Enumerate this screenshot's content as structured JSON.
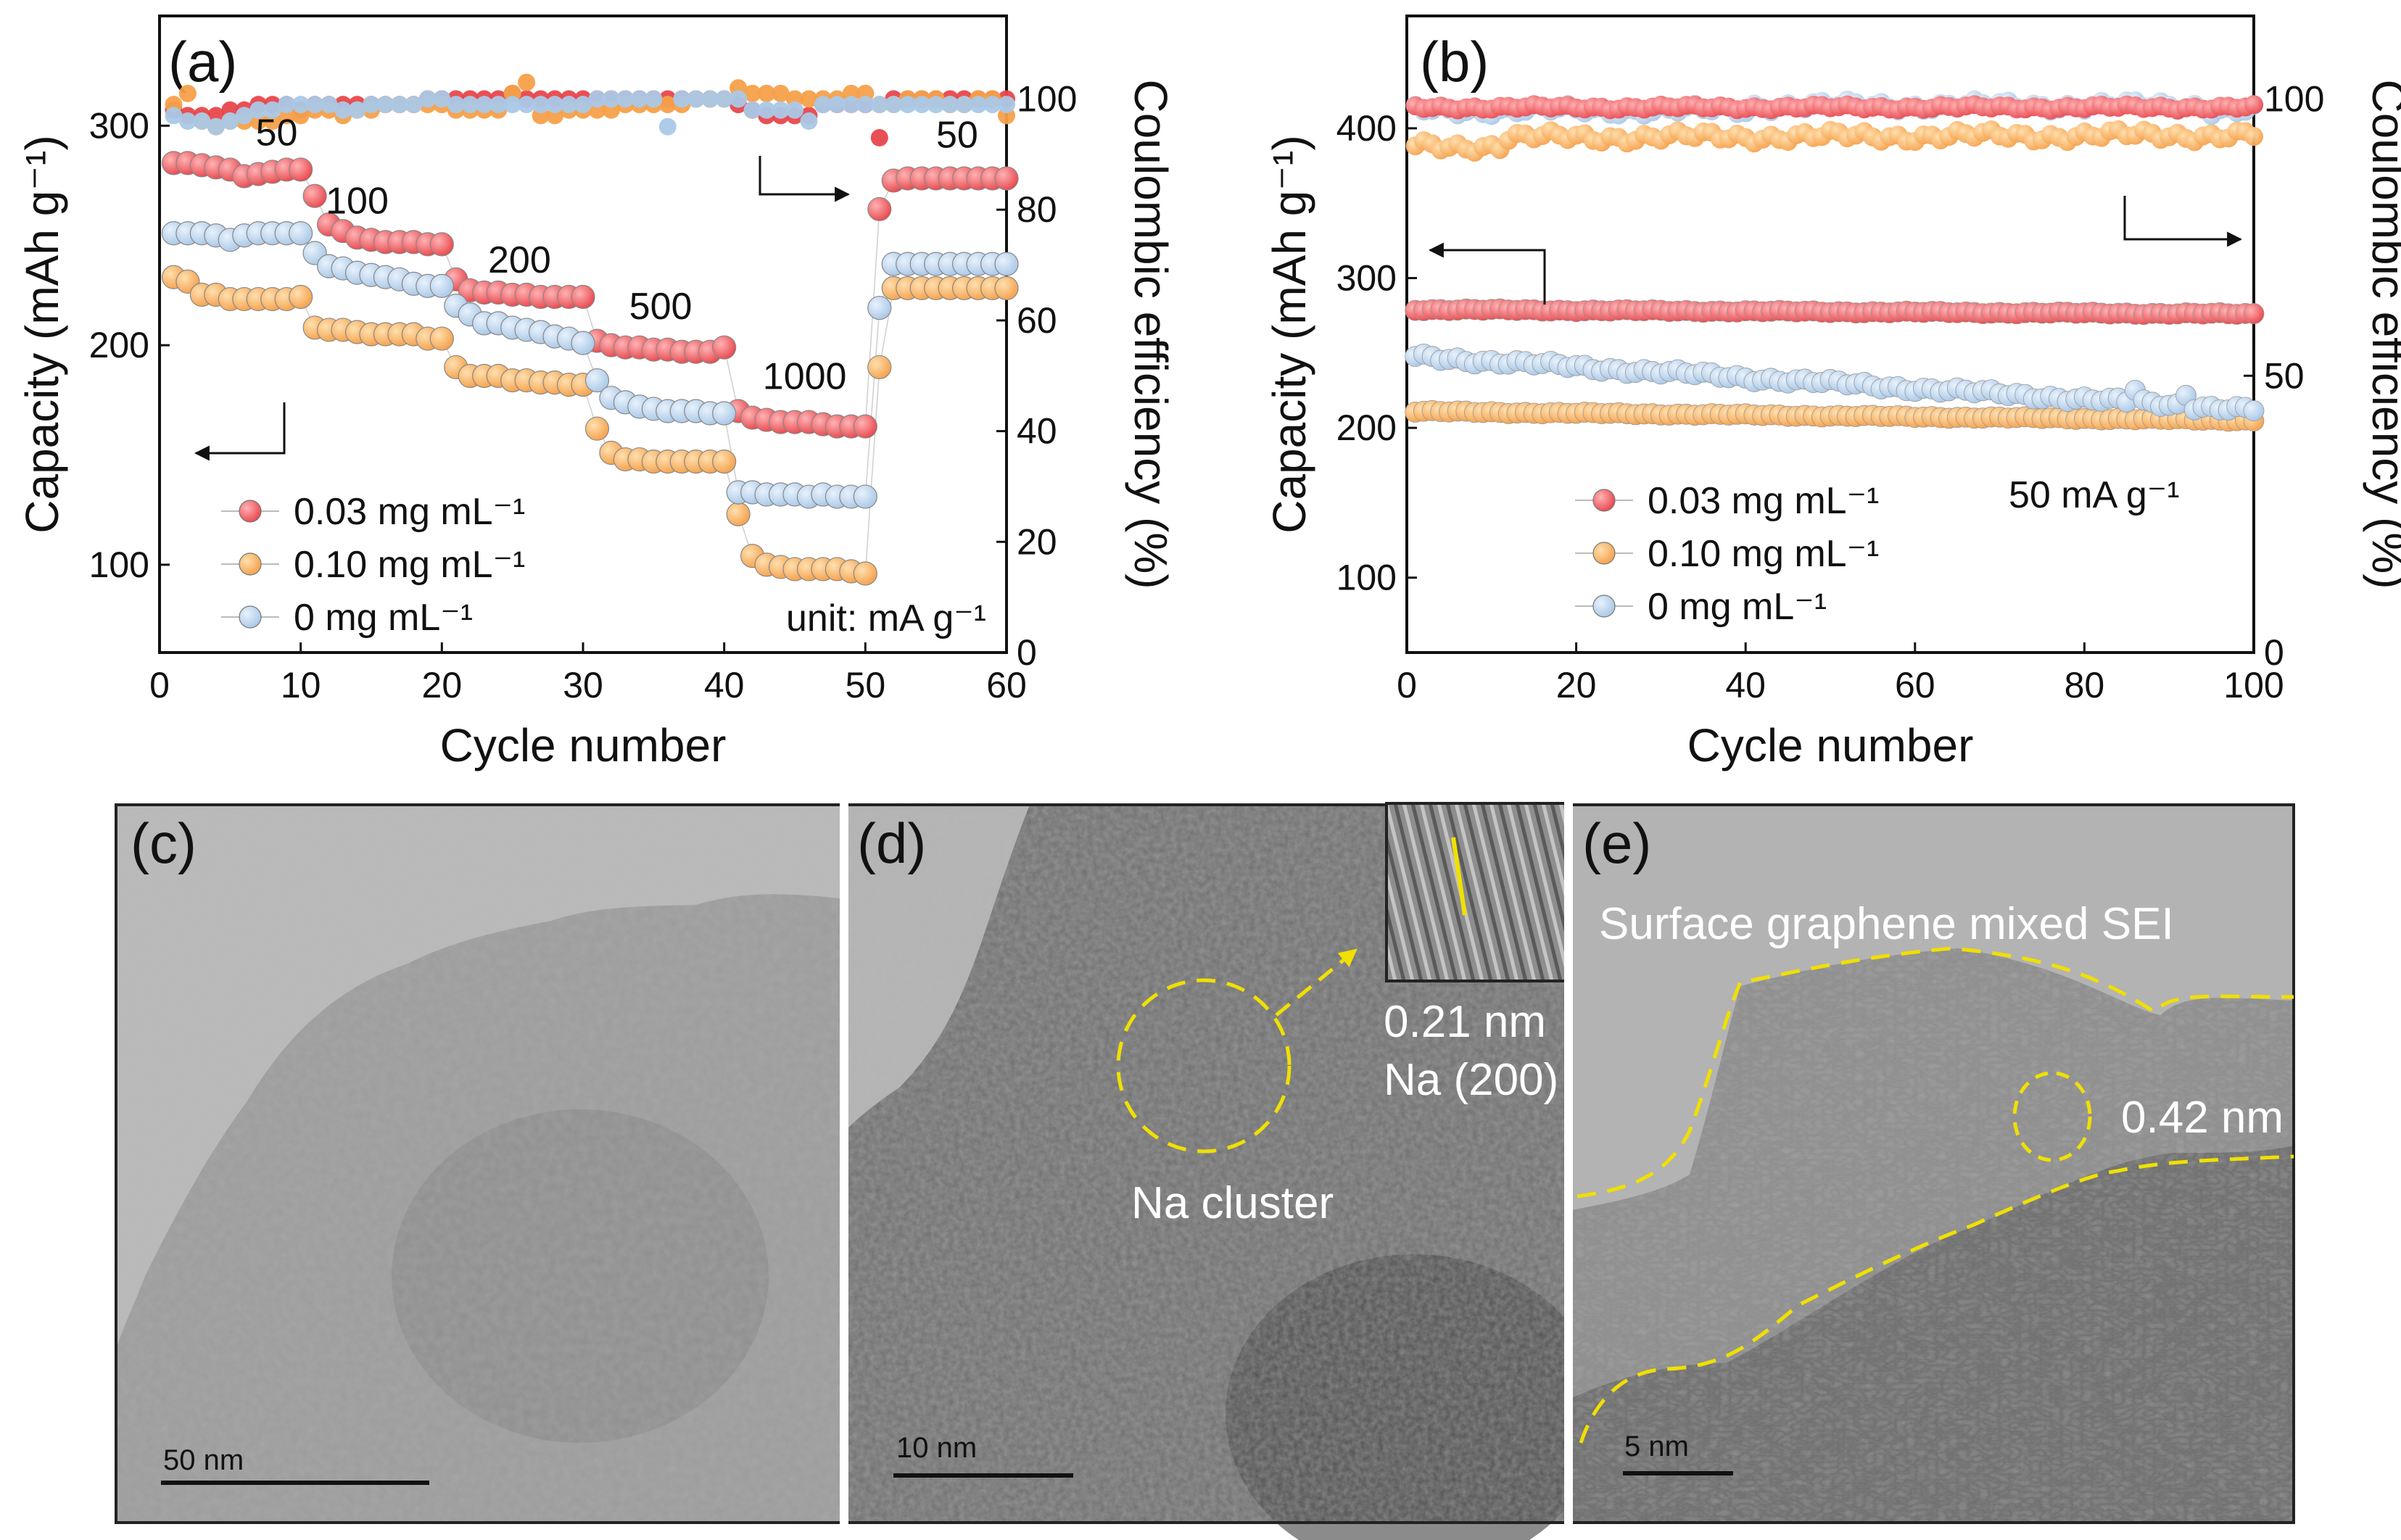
{
  "chart_data": [
    {
      "panel": "(a)",
      "type": "scatter",
      "xlabel": "Cycle number",
      "ylabel_left": "Capacity (mAh g⁻¹)",
      "ylabel_right": "Coulombic efficiency (%)",
      "xlim": [
        0,
        60
      ],
      "xticks": [
        0,
        10,
        20,
        30,
        40,
        50,
        60
      ],
      "ylim_left": [
        60,
        350
      ],
      "yticks_left": [
        100,
        200,
        300
      ],
      "ylim_right": [
        0,
        115
      ],
      "yticks_right": [
        0,
        20,
        40,
        60,
        80,
        100
      ],
      "rate_labels": [
        {
          "text": "50",
          "x": 8.3,
          "y": 291
        },
        {
          "text": "100",
          "x": 14,
          "y": 260
        },
        {
          "text": "200",
          "x": 25.5,
          "y": 233
        },
        {
          "text": "500",
          "x": 35.5,
          "y": 212
        },
        {
          "text": "1000",
          "x": 45.7,
          "y": 180
        },
        {
          "text": "50",
          "x": 56.5,
          "y": 290
        }
      ],
      "note": "unit: mA g⁻¹",
      "legend": "lower-left",
      "series": [
        {
          "name": "0.03 mg mL⁻¹",
          "color": "#e8474c",
          "capacity": [
            283,
            283,
            282,
            281,
            280,
            277,
            278,
            279,
            280,
            280,
            268,
            255,
            252,
            249,
            248,
            247,
            247,
            247,
            246,
            246,
            230,
            225,
            224,
            224,
            223,
            223,
            222,
            222,
            222,
            222,
            202,
            200,
            199,
            199,
            198,
            198,
            197,
            197,
            197,
            199,
            170,
            167,
            166,
            165,
            165,
            165,
            164,
            163,
            163,
            163,
            262,
            275,
            276,
            276,
            276,
            276,
            276,
            276,
            276,
            276
          ],
          "ce": [
            98,
            97,
            97,
            97,
            98,
            98,
            99,
            99,
            99,
            98,
            99,
            99,
            99,
            99,
            99,
            99,
            99,
            99,
            100,
            100,
            100,
            100,
            100,
            100,
            101,
            100,
            100,
            100,
            100,
            100,
            100,
            100,
            100,
            100,
            100,
            100,
            100,
            100,
            100,
            100,
            99,
            98,
            97,
            97,
            97,
            97,
            99,
            99,
            99,
            99,
            93,
            100,
            100,
            100,
            100,
            100,
            100,
            100,
            100,
            100
          ]
        },
        {
          "name": "0.10 mg mL⁻¹",
          "color": "#f5a04a",
          "capacity": [
            231,
            229,
            223,
            223,
            221,
            221,
            221,
            221,
            221,
            222,
            208,
            207,
            207,
            206,
            205,
            205,
            205,
            205,
            203,
            203,
            190,
            186,
            186,
            186,
            184,
            184,
            183,
            183,
            182,
            182,
            162,
            151,
            148,
            148,
            147,
            147,
            147,
            147,
            147,
            147,
            123,
            104,
            100,
            99,
            98,
            98,
            98,
            98,
            97,
            96,
            190,
            226,
            226,
            226,
            226,
            226,
            226,
            226,
            226,
            226
          ],
          "ce": [
            99,
            101,
            96,
            95,
            96,
            96,
            96,
            96,
            97,
            97,
            98,
            98,
            97,
            98,
            98,
            99,
            99,
            99,
            99,
            99,
            98,
            98,
            98,
            98,
            101,
            103,
            97,
            97,
            98,
            98,
            98,
            98,
            99,
            99,
            99,
            99,
            99,
            100,
            100,
            100,
            102,
            101,
            101,
            101,
            100,
            100,
            100,
            100,
            101,
            101,
            99,
            99,
            100,
            100,
            100,
            99,
            99,
            100,
            100,
            97
          ]
        },
        {
          "name": "0 mg mL⁻¹",
          "color": "#aac8e6",
          "capacity": [
            251,
            251,
            251,
            250,
            248,
            250,
            251,
            251,
            251,
            251,
            242,
            236,
            235,
            233,
            232,
            231,
            230,
            228,
            227,
            227,
            218,
            214,
            210,
            210,
            208,
            207,
            206,
            204,
            203,
            201,
            184,
            176,
            174,
            172,
            171,
            170,
            170,
            170,
            169,
            169,
            133,
            133,
            132,
            132,
            132,
            131,
            132,
            131,
            131,
            131,
            217,
            237,
            237,
            237,
            237,
            237,
            237,
            237,
            237,
            237
          ],
          "ce": [
            97,
            96,
            96,
            95,
            96,
            97,
            98,
            98,
            99,
            99,
            99,
            99,
            98,
            98,
            99,
            99,
            99,
            99,
            100,
            100,
            99,
            99,
            99,
            99,
            99,
            99,
            99,
            99,
            99,
            99,
            100,
            100,
            100,
            100,
            100,
            95,
            100,
            100,
            100,
            100,
            100,
            98,
            98,
            98,
            98,
            96,
            99,
            99,
            99,
            99,
            99,
            99,
            99,
            99,
            99,
            99,
            99,
            99,
            99,
            99
          ]
        }
      ]
    },
    {
      "panel": "(b)",
      "type": "scatter",
      "xlabel": "Cycle number",
      "ylabel_left": "Capacity (mAh g⁻¹)",
      "ylabel_right": "Coulombic efficiency (%)",
      "xlim": [
        0,
        100
      ],
      "xticks": [
        0,
        20,
        40,
        60,
        80,
        100
      ],
      "ylim_left": [
        50,
        475
      ],
      "yticks_left": [
        100,
        200,
        300,
        400
      ],
      "ylim_right": [
        0,
        115
      ],
      "yticks_right": [
        0,
        50,
        100
      ],
      "note": "50 mA g⁻¹",
      "legend": "lower-left",
      "series": [
        {
          "name": "0.03 mg mL⁻¹",
          "color": "#e8474c",
          "capacity_start": 279,
          "capacity_end": 276,
          "ce_mean": 98.5
        },
        {
          "name": "0.10 mg mL⁻¹",
          "color": "#f5a04a",
          "capacity_start": 211,
          "capacity_end": 205,
          "ce_start": 93,
          "ce_end": 93.5
        },
        {
          "name": "0 mg mL⁻¹",
          "color": "#aac8e6",
          "capacity_start": 248,
          "capacity_end": 212,
          "ce_mean": 98
        }
      ]
    }
  ],
  "tem": {
    "c": {
      "letter": "(c)",
      "scale": "50 nm"
    },
    "d": {
      "letter": "(d)",
      "scale": "10 nm",
      "label": "Na cluster",
      "spacing": "0.21 nm",
      "plane": "Na (200)"
    },
    "e": {
      "letter": "(e)",
      "scale": "5 nm",
      "label": "Surface graphene mixed SEI",
      "spacing": "0.42 nm"
    }
  }
}
